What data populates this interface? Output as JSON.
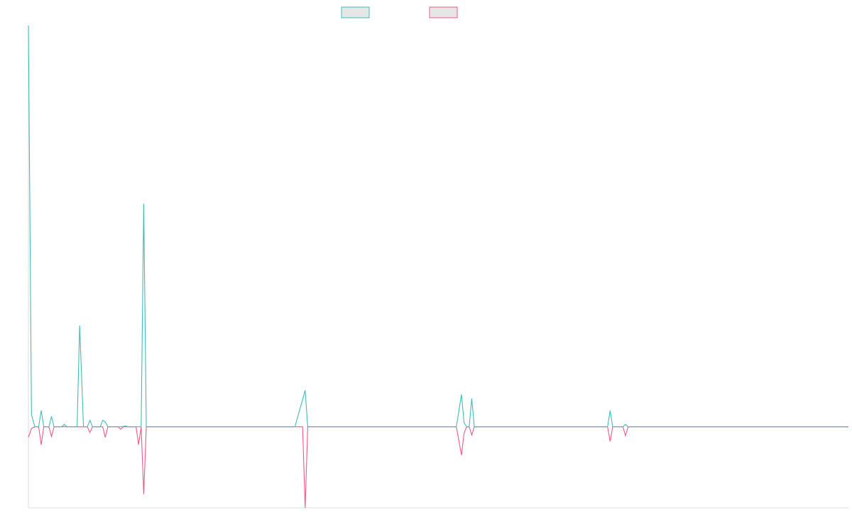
{
  "chart_data": {
    "type": "line",
    "title": "",
    "xlabel": "",
    "ylabel": "",
    "grid": false,
    "legend_position": "top-center",
    "xlim": [
      0,
      320
    ],
    "ylim": [
      -1.0,
      4.95
    ],
    "colors": {
      "series_a": "#3fbdb8",
      "series_b": "#ef5a83",
      "legend_fill": "#e6e6e6",
      "axis": "#dddddd"
    },
    "series": [
      {
        "key": "a",
        "points": [
          [
            0,
            4.95
          ],
          [
            1.2,
            0.15
          ],
          [
            2.5,
            0
          ],
          [
            4,
            0
          ],
          [
            5,
            0.2
          ],
          [
            6,
            0
          ],
          [
            8,
            0
          ],
          [
            9,
            0.13
          ],
          [
            10,
            0
          ],
          [
            13,
            0
          ],
          [
            14,
            0.03
          ],
          [
            15,
            0
          ],
          [
            19,
            0
          ],
          [
            20,
            1.25
          ],
          [
            21.5,
            0
          ],
          [
            23,
            0
          ],
          [
            24,
            0.08
          ],
          [
            25,
            0
          ],
          [
            28,
            0
          ],
          [
            29,
            0.08
          ],
          [
            30,
            0.06
          ],
          [
            31,
            0
          ],
          [
            36,
            0
          ],
          [
            38,
            0.01
          ],
          [
            39,
            0
          ],
          [
            44,
            0
          ],
          [
            45,
            2.75
          ],
          [
            46,
            0
          ],
          [
            104,
            0
          ],
          [
            108,
            0.45
          ],
          [
            109,
            0
          ],
          [
            167,
            0
          ],
          [
            169,
            0.4
          ],
          [
            170,
            0.05
          ],
          [
            171,
            0
          ],
          [
            172,
            0
          ],
          [
            173,
            0.35
          ],
          [
            174,
            0
          ],
          [
            226,
            0
          ],
          [
            227,
            0.2
          ],
          [
            228,
            0
          ],
          [
            232,
            0
          ],
          [
            233,
            0.03
          ],
          [
            234,
            0
          ],
          [
            320,
            0
          ]
        ]
      },
      {
        "key": "b",
        "points": [
          [
            0,
            -0.13
          ],
          [
            1.2,
            -0.02
          ],
          [
            2.5,
            0
          ],
          [
            4,
            0
          ],
          [
            5,
            -0.22
          ],
          [
            6,
            0
          ],
          [
            8,
            0
          ],
          [
            9,
            -0.12
          ],
          [
            10,
            0
          ],
          [
            23,
            0
          ],
          [
            24,
            -0.07
          ],
          [
            25,
            0
          ],
          [
            29,
            0
          ],
          [
            30,
            -0.13
          ],
          [
            31,
            0
          ],
          [
            35,
            0
          ],
          [
            36,
            -0.03
          ],
          [
            37,
            0
          ],
          [
            42,
            0
          ],
          [
            43,
            -0.22
          ],
          [
            44,
            0
          ],
          [
            45,
            -0.83
          ],
          [
            46,
            0
          ],
          [
            107,
            0
          ],
          [
            108,
            -1.0
          ],
          [
            109,
            0
          ],
          [
            167,
            0
          ],
          [
            169,
            -0.35
          ],
          [
            170,
            -0.08
          ],
          [
            171,
            0
          ],
          [
            172,
            0
          ],
          [
            173,
            -0.1
          ],
          [
            174,
            0
          ],
          [
            226,
            0
          ],
          [
            227,
            -0.18
          ],
          [
            228,
            0
          ],
          [
            232,
            0
          ],
          [
            233,
            -0.11
          ],
          [
            234,
            0
          ],
          [
            320,
            0
          ]
        ]
      }
    ]
  }
}
